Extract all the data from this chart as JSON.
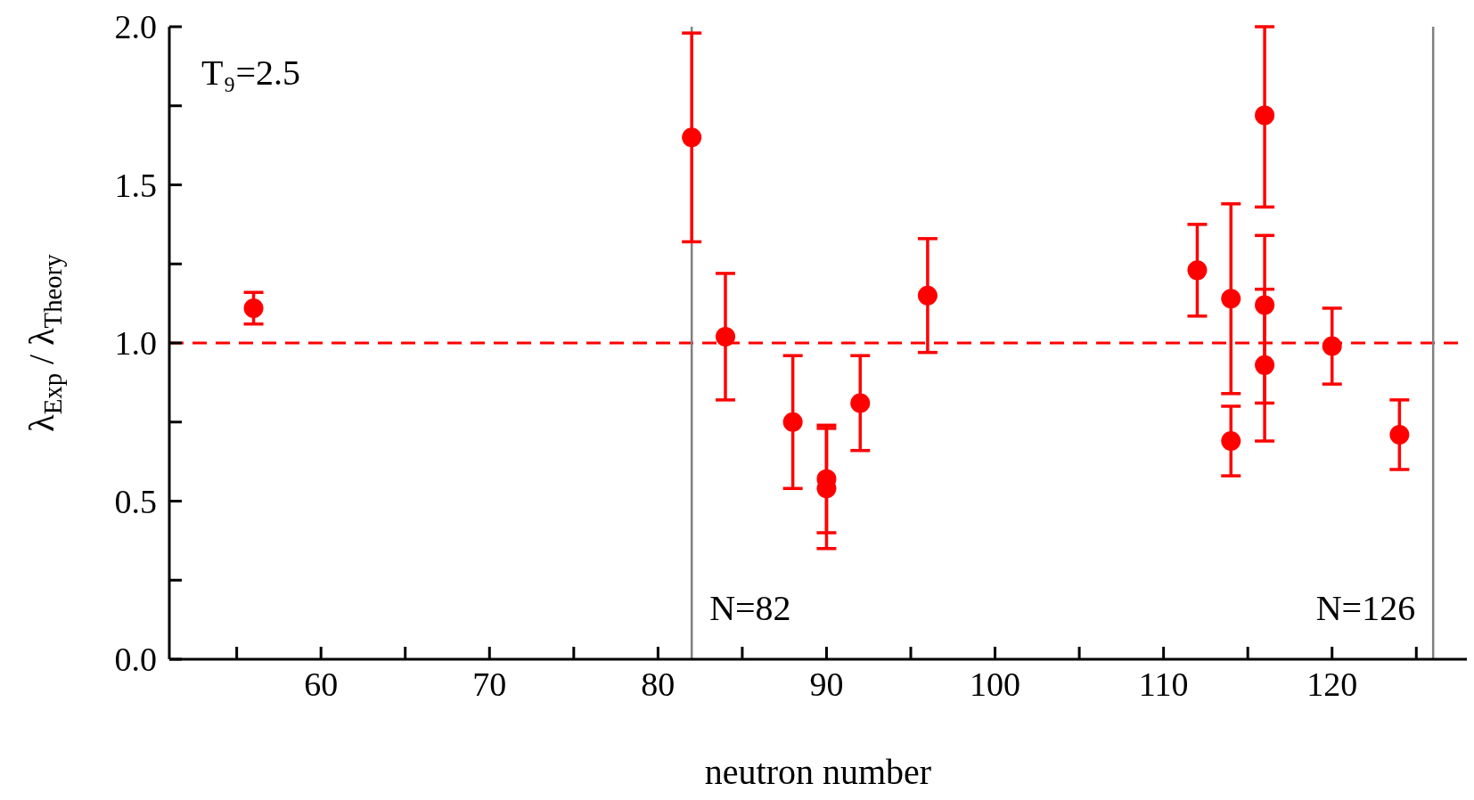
{
  "chart_data": {
    "type": "scatter",
    "xlabel": "neutron number",
    "ylabel": "λ$_{Exp}$ / λ$_{Theory}$",
    "annotations": [
      "T₉=2.5"
    ],
    "x": [
      56,
      82,
      84,
      88,
      90,
      90,
      92,
      96,
      112,
      114,
      114,
      116,
      116,
      116,
      120,
      124
    ],
    "series": [
      {
        "color": "#ff0000",
        "values": [
          1.11,
          1.65,
          1.02,
          0.75,
          0.57,
          0.54,
          0.81,
          1.15,
          1.23,
          1.14,
          0.69,
          1.72,
          1.12,
          0.93,
          0.99,
          0.71
        ],
        "errors": [
          0.05,
          0.33,
          0.2,
          0.21,
          0.17,
          0.19,
          0.15,
          0.18,
          0.145,
          0.3,
          0.11,
          [
            1.43,
            2.0
          ],
          [
            0.81,
            1.34
          ],
          0.24,
          0.12,
          0.11
        ]
      }
    ],
    "marker": "circle",
    "legend": false,
    "grid": false,
    "xlim": [
      51,
      128
    ],
    "ylim": [
      0,
      2
    ],
    "xticks": [
      {
        "value": 55,
        "label": null
      },
      60,
      {
        "value": 65,
        "label": null
      },
      70,
      {
        "value": 75,
        "label": null
      },
      80,
      {
        "value": 85,
        "label": null
      },
      90,
      {
        "value": 95,
        "label": null
      },
      100,
      {
        "value": 105,
        "label": null
      },
      110,
      {
        "value": 115,
        "label": null
      },
      120,
      {
        "value": 125,
        "label": null
      }
    ],
    "yticks": [
      {
        "value": 0,
        "label": "0.0"
      },
      {
        "value": 0.25,
        "label": null
      },
      0.5,
      {
        "value": 0.75,
        "label": null
      },
      {
        "value": 1,
        "label": "1.0"
      },
      {
        "value": 1.25,
        "label": null
      },
      1.5,
      {
        "value": 1.75,
        "label": null
      },
      {
        "value": 2,
        "label": "2.0"
      }
    ],
    "ref_lines": [
      {
        "axis": "y",
        "value": 1,
        "color": "#ff0000",
        "line_style": "dashed"
      },
      {
        "axis": "x",
        "value": 82,
        "label": "N=82",
        "color": "#808080",
        "line_style": "solid"
      },
      {
        "axis": "x",
        "value": 126,
        "label": "N=126",
        "color": "#808080",
        "line_style": "solid"
      }
    ]
  }
}
